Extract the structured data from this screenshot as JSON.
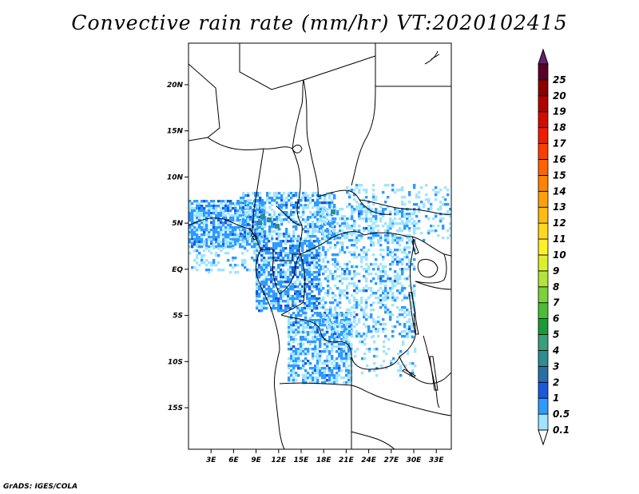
{
  "title": "Convective rain rate (mm/hr) VT:2020102415",
  "credit": "GrADS: IGES/COLA",
  "map": {
    "lon_range": [
      0,
      35
    ],
    "lat_range": [
      -19.5,
      24.5
    ],
    "lat_ticks": [
      {
        "value": 20,
        "label": "20N"
      },
      {
        "value": 15,
        "label": "15N"
      },
      {
        "value": 10,
        "label": "10N"
      },
      {
        "value": 5,
        "label": "5N"
      },
      {
        "value": 0,
        "label": "EQ"
      },
      {
        "value": -5,
        "label": "5S"
      },
      {
        "value": -10,
        "label": "10S"
      },
      {
        "value": -15,
        "label": "15S"
      }
    ],
    "lon_ticks": [
      {
        "value": 3,
        "label": "3E"
      },
      {
        "value": 6,
        "label": "6E"
      },
      {
        "value": 9,
        "label": "9E"
      },
      {
        "value": 12,
        "label": "12E"
      },
      {
        "value": 15,
        "label": "15E"
      },
      {
        "value": 18,
        "label": "18E"
      },
      {
        "value": 21,
        "label": "21E"
      },
      {
        "value": 24,
        "label": "24E"
      },
      {
        "value": 27,
        "label": "27E"
      },
      {
        "value": 30,
        "label": "30E"
      },
      {
        "value": 33,
        "label": "33E"
      }
    ]
  },
  "colorbar": {
    "levels": [
      {
        "label": "0.1",
        "color": "#a0e4ff"
      },
      {
        "label": "0.5",
        "color": "#2e9bff"
      },
      {
        "label": "1",
        "color": "#1e58d8"
      },
      {
        "label": "2",
        "color": "#2a6ea6"
      },
      {
        "label": "3",
        "color": "#2e8c92"
      },
      {
        "label": "4",
        "color": "#3a9e78"
      },
      {
        "label": "5",
        "color": "#1c9a3a"
      },
      {
        "label": "6",
        "color": "#4cbc38"
      },
      {
        "label": "7",
        "color": "#7ad23e"
      },
      {
        "label": "8",
        "color": "#b4e43c"
      },
      {
        "label": "9",
        "color": "#dcf02e"
      },
      {
        "label": "10",
        "color": "#fff028"
      },
      {
        "label": "11",
        "color": "#ffd81e"
      },
      {
        "label": "12",
        "color": "#ffbc14"
      },
      {
        "label": "13",
        "color": "#ffa00a"
      },
      {
        "label": "14",
        "color": "#ff8200"
      },
      {
        "label": "15",
        "color": "#ff6400"
      },
      {
        "label": "16",
        "color": "#ff3c00"
      },
      {
        "label": "17",
        "color": "#f01c00"
      },
      {
        "label": "18",
        "color": "#d20a00"
      },
      {
        "label": "19",
        "color": "#b40000"
      },
      {
        "label": "20",
        "color": "#8c0000"
      },
      {
        "label": "25",
        "color": "#5a0028"
      }
    ],
    "under_color": "#ffffff",
    "over_color": "#6a1e6e"
  }
}
